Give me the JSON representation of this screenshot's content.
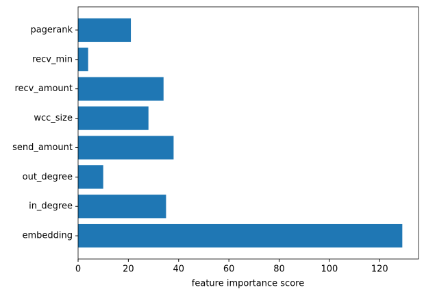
{
  "chart_data": {
    "type": "barh",
    "xlabel": "feature importance score",
    "categories": [
      "embedding",
      "in_degree",
      "out_degree",
      "send_amount",
      "wcc_size",
      "recv_amount",
      "recv_min",
      "pagerank"
    ],
    "values": [
      129,
      35,
      10,
      38,
      28,
      34,
      4,
      21
    ],
    "color": "#1f77b4",
    "xlim": [
      0,
      135.45
    ],
    "xticks": [
      0,
      20,
      40,
      60,
      80,
      100,
      120
    ]
  }
}
